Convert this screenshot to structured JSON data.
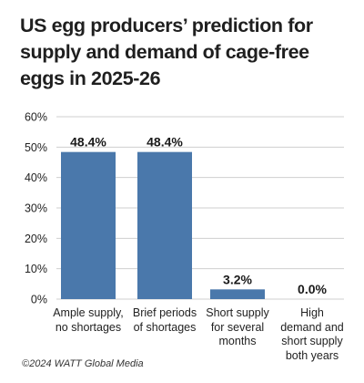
{
  "chart_data": {
    "type": "bar",
    "title_lines": [
      "US egg producers’ prediction for",
      "supply and demand of cage-free",
      "eggs in 2025-26"
    ],
    "categories": [
      "Ample supply, no shortages",
      "Brief periods of shortages",
      "Short supply for several months",
      "High demand and short supply both years"
    ],
    "category_lines": [
      [
        "Ample supply,",
        "no shortages"
      ],
      [
        "Brief periods",
        "of shortages"
      ],
      [
        "Short supply",
        "for several",
        "months"
      ],
      [
        "High",
        "demand and",
        "short supply",
        "both years"
      ]
    ],
    "values": [
      48.4,
      48.4,
      3.2,
      0.0
    ],
    "data_labels": [
      "48.4%",
      "48.4%",
      "3.2%",
      "0.0%"
    ],
    "y_ticks": [
      "0%",
      "10%",
      "20%",
      "30%",
      "40%",
      "50%",
      "60%"
    ],
    "ylim": [
      0,
      60
    ],
    "grid": true,
    "legend": "none",
    "bar_color": "#4a78ab",
    "grid_color": "#cfcfcf",
    "xlabel": "",
    "ylabel": ""
  },
  "footer": {
    "copyright": "©2024 WATT Global Media"
  }
}
